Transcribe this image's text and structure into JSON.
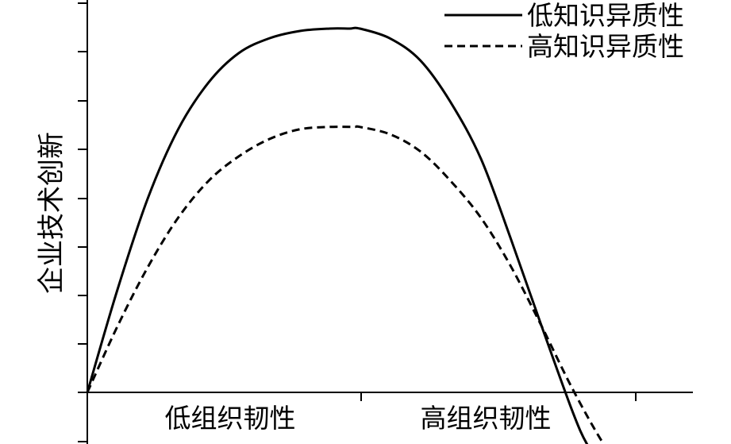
{
  "chart_data": {
    "type": "line",
    "title": "",
    "xlabel": "",
    "ylabel": "企业技术创新",
    "x_categories": [
      "低组织韧性",
      "高组织韧性"
    ],
    "xlim": [
      0,
      1.0
    ],
    "ylim": [
      -0.2,
      1.5
    ],
    "grid": false,
    "legend_position": "top-right",
    "series": [
      {
        "name": "低知识异质性",
        "style": "solid",
        "color": "#000000",
        "x": [
          0,
          0.05,
          0.1,
          0.15,
          0.2,
          0.25,
          0.3,
          0.35,
          0.4,
          0.433,
          0.45,
          0.5,
          0.55,
          0.6,
          0.65,
          0.7,
          0.75,
          0.8,
          0.825,
          0.85
        ],
        "y": [
          0,
          0.42,
          0.79,
          1.07,
          1.26,
          1.38,
          1.44,
          1.47,
          1.48,
          1.48,
          1.48,
          1.44,
          1.35,
          1.18,
          0.95,
          0.62,
          0.27,
          -0.07,
          -0.21,
          -0.29
        ]
      },
      {
        "name": "高知识异质性",
        "style": "dashed",
        "color": "#000000",
        "x": [
          0,
          0.05,
          0.1,
          0.15,
          0.2,
          0.25,
          0.3,
          0.35,
          0.4,
          0.44,
          0.45,
          0.5,
          0.55,
          0.6,
          0.65,
          0.7,
          0.75,
          0.8,
          0.85,
          0.88
        ],
        "y": [
          0,
          0.27,
          0.51,
          0.71,
          0.86,
          0.96,
          1.03,
          1.07,
          1.08,
          1.08,
          1.08,
          1.05,
          0.98,
          0.86,
          0.71,
          0.51,
          0.27,
          0.02,
          -0.2,
          -0.29
        ]
      }
    ]
  }
}
